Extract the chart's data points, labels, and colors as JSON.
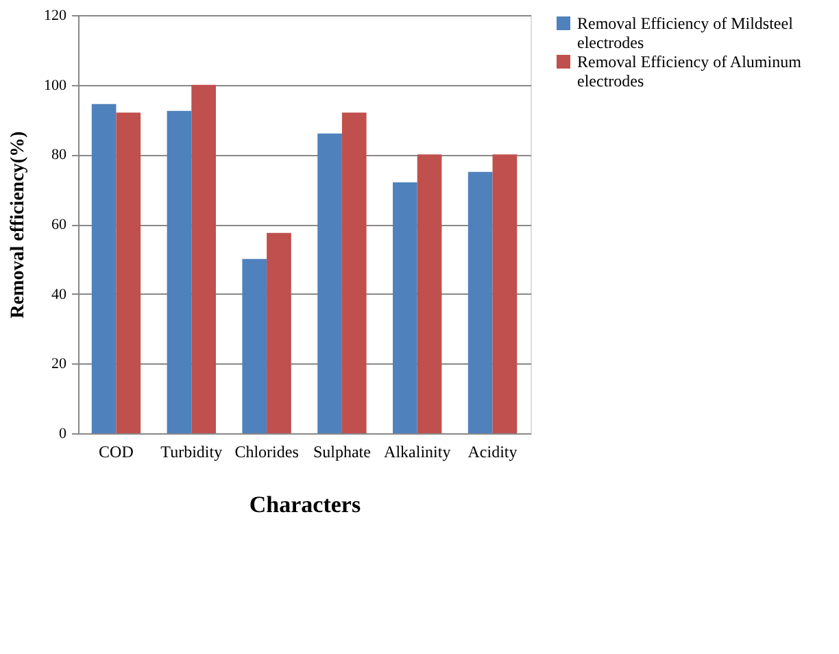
{
  "chart_data": {
    "type": "bar",
    "xlabel": "Characters",
    "ylabel": "Removal efficiency(%)",
    "categories": [
      "COD",
      "Turbidity",
      "Chlorides",
      "Sulphate",
      "Alkalinity",
      "Acidity"
    ],
    "series": [
      {
        "name": "Removal Efficiency of Mildsteel electrodes",
        "color": "#4f81bd",
        "values": [
          94.5,
          92.5,
          50,
          86,
          72,
          75
        ]
      },
      {
        "name": "Removal Efficiency of Aluminum electrodes",
        "color": "#c0504d",
        "values": [
          92,
          100,
          57.5,
          92,
          80,
          80
        ]
      }
    ],
    "ylim": [
      0,
      120
    ],
    "yticks": [
      0,
      20,
      40,
      60,
      80,
      100,
      120
    ],
    "grid": "y",
    "legend": "right"
  }
}
